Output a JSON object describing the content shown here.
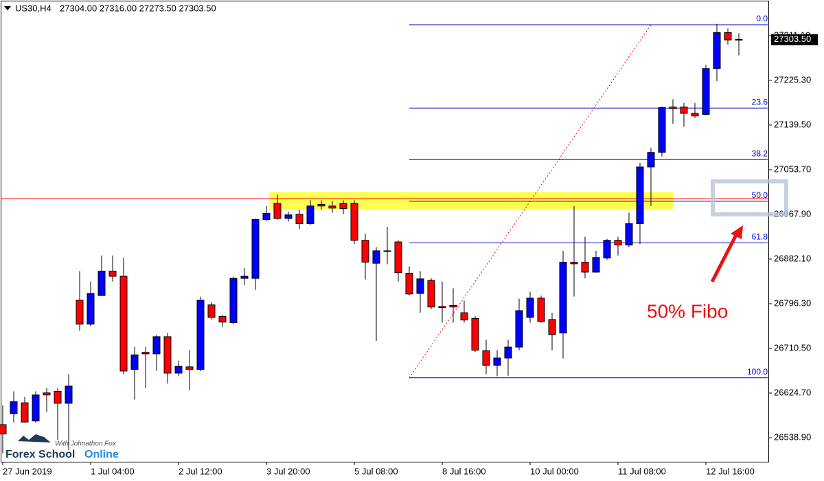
{
  "chart_data": {
    "type": "candlestick",
    "title": "US30,H4",
    "header_prices": "27304.00 27316.00 27273.50 27303.50",
    "categories": [
      "27 Jun 2019",
      null,
      null,
      null,
      null,
      null,
      null,
      null,
      "1 Jul 04:00",
      null,
      null,
      null,
      null,
      null,
      null,
      null,
      "2 Jul 12:00",
      null,
      null,
      null,
      null,
      null,
      null,
      null,
      "3 Jul 20:00",
      null,
      null,
      null,
      null,
      null,
      null,
      null,
      "5 Jul 08:00",
      null,
      null,
      null,
      null,
      null,
      null,
      null,
      "8 Jul 16:00",
      null,
      null,
      null,
      null,
      null,
      null,
      null,
      "10 Jul 00:00",
      null,
      null,
      null,
      null,
      null,
      null,
      null,
      "11 Jul 08:00",
      null,
      null,
      null,
      null,
      null,
      null,
      null,
      "12 Jul 16:00",
      null,
      null,
      null
    ],
    "open": [
      26564,
      26585,
      26606,
      26571,
      26625,
      26628,
      26605,
      26803,
      26757,
      26812,
      26859,
      26849,
      26670,
      26703,
      26700,
      26733,
      26663,
      26675,
      26670,
      26794,
      26772,
      26760,
      26845,
      26845,
      26958,
      26989,
      26960,
      26968,
      26950,
      26987,
      26984,
      26989,
      26989,
      26918,
      26874,
      26898,
      26915,
      26855,
      26816,
      26841,
      26791,
      26793,
      26779,
      26768,
      26706,
      26678,
      26692,
      26713,
      26770,
      26807,
      26766,
      26740,
      26876,
      26876,
      26857,
      26884,
      26918,
      26909,
      26950,
      27059,
      27087,
      27174,
      27174,
      27162,
      27160,
      27248,
      27317,
      27304
    ],
    "high": [
      26601,
      26628,
      26617,
      26628,
      26634,
      26634,
      26661,
      26859,
      26839,
      26889,
      26889,
      26885,
      26713,
      26713,
      26736,
      26740,
      26687,
      26707,
      26810,
      26799,
      26775,
      26848,
      26865,
      26960,
      26984,
      27006,
      26973,
      26977,
      26995,
      26995,
      26993,
      26995,
      26995,
      26931,
      26905,
      26944,
      26918,
      26868,
      26859,
      26845,
      26839,
      26826,
      26802,
      26773,
      26727,
      26707,
      26727,
      26806,
      26819,
      26812,
      26779,
      26898,
      26984,
      26925,
      26898,
      26921,
      26925,
      26971,
      27067,
      27096,
      27175,
      27189,
      27182,
      27182,
      27255,
      27334,
      27325,
      27316
    ],
    "low": [
      26509,
      26568,
      26568,
      26568,
      26588,
      26535,
      26515,
      26744,
      26753,
      26812,
      26839,
      26661,
      26612,
      26634,
      26667,
      26643,
      26657,
      26630,
      26667,
      26766,
      26752,
      26757,
      26832,
      26823,
      26955,
      26958,
      26954,
      26940,
      26948,
      26977,
      26971,
      26968,
      26911,
      26843,
      26725,
      26872,
      26839,
      26812,
      26779,
      26786,
      26760,
      26760,
      26760,
      26704,
      26661,
      26657,
      26658,
      26707,
      26760,
      26760,
      26707,
      26691,
      26810,
      26845,
      26856,
      26881,
      26889,
      26905,
      26911,
      26984,
      27079,
      27142,
      27136,
      27153,
      27158,
      27224,
      27294,
      27273.5
    ],
    "close": [
      26546,
      26608,
      26569,
      26621,
      26621,
      26605,
      26638,
      26757,
      26816,
      26859,
      26849,
      26667,
      26698,
      26700,
      26733,
      26663,
      26676,
      26670,
      26803,
      26770,
      26761,
      26845,
      26849,
      26958,
      26970,
      26960,
      26967,
      26950,
      26984,
      26984,
      26980,
      26979,
      26918,
      26876,
      26898,
      26897,
      26856,
      26815,
      26844,
      26790,
      26789,
      26790,
      26765,
      26707,
      26678,
      26692,
      26713,
      26783,
      26807,
      26762,
      26737,
      26876,
      26873,
      26857,
      26885,
      26918,
      26909,
      26950,
      27059,
      27087,
      27173,
      27171,
      27162,
      27157,
      27248,
      27317,
      27303,
      27303.5
    ],
    "up_color": "#0000ff",
    "down_color": "#ff0000",
    "ylim": [
      26492.7,
      27379.7
    ],
    "yticks": [
      {
        "value": 26538.9,
        "label": "26538.90"
      },
      {
        "value": 26624.7,
        "label": "26624.70"
      },
      {
        "value": 26710.5,
        "label": "26710.50"
      },
      {
        "value": 26796.3,
        "label": "26796.30"
      },
      {
        "value": 26882.1,
        "label": "26882.10"
      },
      {
        "value": 26967.9,
        "label": "26967.90"
      },
      {
        "value": 27053.7,
        "label": "27053.70"
      },
      {
        "value": 27139.5,
        "label": "27139.50"
      },
      {
        "value": 27225.3,
        "label": "27225.30"
      },
      {
        "value": 27311.1,
        "label": "27311.10"
      }
    ],
    "last_price": {
      "value": 27303.5,
      "label": "27303.50"
    },
    "horizontal_line": {
      "value": 26998,
      "color": "#ff0000"
    },
    "zone": {
      "values": [
        26977,
        27011
      ],
      "candles": [
        24,
        61
      ],
      "color": "#ffff33"
    },
    "fibonacci": {
      "high": 27332.2,
      "low": 26654,
      "anchor_candles": [
        37,
        59
      ],
      "color": "#0000cc",
      "trend_color": "#ff0000",
      "levels": [
        {
          "value": 0,
          "label": "0.0"
        },
        {
          "value": 23.6,
          "label": "23.6"
        },
        {
          "value": 38.2,
          "label": "38.2"
        },
        {
          "value": 50,
          "label": "50.0"
        },
        {
          "value": 61.8,
          "label": "61.8"
        },
        {
          "value": 100,
          "label": "100.0"
        }
      ]
    },
    "annotation": "50% Fibo",
    "logo": {
      "brand": "Forex School",
      "brand_accent": "Online",
      "tagline": "With Johnathon Fox"
    }
  }
}
